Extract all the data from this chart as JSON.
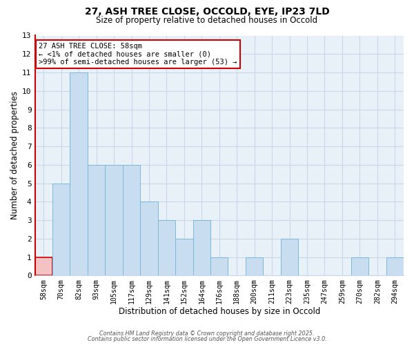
{
  "title": "27, ASH TREE CLOSE, OCCOLD, EYE, IP23 7LD",
  "subtitle": "Size of property relative to detached houses in Occold",
  "xlabel": "Distribution of detached houses by size in Occold",
  "ylabel": "Number of detached properties",
  "categories": [
    "58sqm",
    "70sqm",
    "82sqm",
    "93sqm",
    "105sqm",
    "117sqm",
    "129sqm",
    "141sqm",
    "152sqm",
    "164sqm",
    "176sqm",
    "188sqm",
    "200sqm",
    "211sqm",
    "223sqm",
    "235sqm",
    "247sqm",
    "259sqm",
    "270sqm",
    "282sqm",
    "294sqm"
  ],
  "values": [
    1,
    5,
    11,
    6,
    6,
    6,
    4,
    3,
    2,
    3,
    1,
    0,
    1,
    0,
    2,
    0,
    0,
    0,
    1,
    0,
    1
  ],
  "highlight_index": 0,
  "bar_color": "#c9ddf0",
  "bar_edge_color": "#7ab8d8",
  "highlight_bar_color": "#f4c2c2",
  "highlight_bar_edge_color": "#cc0000",
  "ylim": [
    0,
    13
  ],
  "yticks": [
    0,
    1,
    2,
    3,
    4,
    5,
    6,
    7,
    8,
    9,
    10,
    11,
    12,
    13
  ],
  "grid_color": "#c8d8e8",
  "background_color": "#ffffff",
  "plot_bg_color": "#e8f0f8",
  "annotation_title": "27 ASH TREE CLOSE: 58sqm",
  "annotation_line1": "← <1% of detached houses are smaller (0)",
  "annotation_line2": ">99% of semi-detached houses are larger (53) →",
  "annotation_box_edge": "#cc0000",
  "left_spine_color": "#cc0000",
  "footer_line1": "Contains HM Land Registry data © Crown copyright and database right 2025.",
  "footer_line2": "Contains public sector information licensed under the Open Government Licence v3.0."
}
